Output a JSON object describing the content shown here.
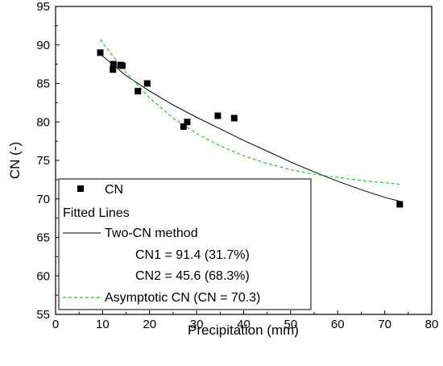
{
  "chart_data": {
    "type": "scatter",
    "xlabel": "Precipitation (mm)",
    "ylabel": "CN (-)",
    "xlim": [
      0,
      80
    ],
    "ylim": [
      55,
      95
    ],
    "xticks": [
      0,
      10,
      20,
      30,
      40,
      50,
      60,
      70,
      80
    ],
    "yticks": [
      55,
      60,
      65,
      70,
      75,
      80,
      85,
      90,
      95
    ],
    "grid": false,
    "legend_position": "bottom-left",
    "points": {
      "name": "CN",
      "color": "#000000",
      "marker": "square",
      "x": [
        9.5,
        12.2,
        12.3,
        13.8,
        14.2,
        17.5,
        19.5,
        27.2,
        28.0,
        34.5,
        38.0,
        73.2
      ],
      "y": [
        89.0,
        86.8,
        87.5,
        87.4,
        87.3,
        84.0,
        85.0,
        79.4,
        80.0,
        80.8,
        80.5,
        69.3
      ]
    },
    "fitted_lines_heading": "Fitted Lines",
    "lines": [
      {
        "name": "Two-CN method",
        "color": "#000000",
        "style": "solid",
        "x": [
          9.5,
          15,
          20,
          25,
          30,
          35,
          40,
          45,
          50,
          55,
          60,
          65,
          70,
          73.2
        ],
        "y": [
          88.8,
          86.0,
          84.0,
          82.2,
          80.6,
          79.1,
          77.6,
          76.2,
          74.8,
          73.5,
          72.3,
          71.2,
          70.2,
          69.7
        ],
        "annotations": [
          "CN1 = 91.4 (31.7%)",
          "CN2 = 45.6 (68.3%)"
        ]
      },
      {
        "name": "Asymptotic CN (CN = 70.3)",
        "color": "#22cc22",
        "style": "dashed",
        "x": [
          9.5,
          12,
          15,
          20,
          25,
          30,
          35,
          40,
          45,
          50,
          55,
          60,
          65,
          70,
          73.2
        ],
        "y": [
          90.7,
          88.7,
          86.4,
          83.1,
          80.5,
          78.5,
          76.9,
          75.6,
          74.6,
          73.8,
          73.2,
          72.8,
          72.4,
          72.1,
          71.9
        ]
      }
    ]
  }
}
